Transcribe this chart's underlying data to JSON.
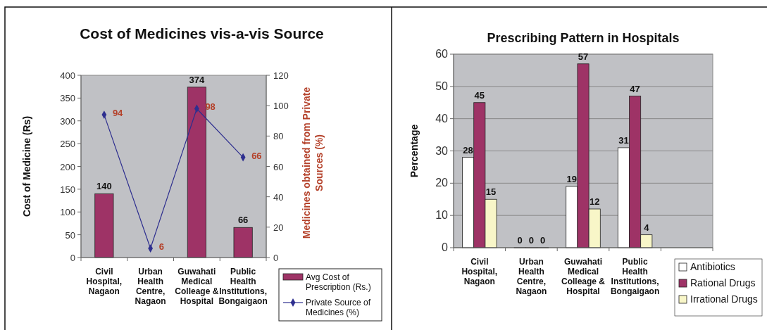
{
  "chart_data": [
    {
      "type": "bar",
      "title": "Cost of Medicines vis-a-vis Source",
      "ylabel": "Cost of Medicine (Rs)",
      "y2label": "Medicines obtained from Private Sources (%)",
      "categories": [
        "Civil Hospital, Nagaon",
        "Urban Health Centre, Nagaon",
        "Guwahati Medical Colleage & Hospital",
        "Public Health Institutions, Bongaigaon"
      ],
      "series": [
        {
          "name": "Avg Cost of Prescription (Rs.)",
          "type": "bar",
          "color": "#9e3366",
          "values": [
            140,
            null,
            374,
            66
          ]
        },
        {
          "name": "Private Source of Medicines (%)",
          "type": "line",
          "axis": "y2",
          "color": "#2e2f8f",
          "values": [
            94,
            6,
            98,
            66
          ]
        }
      ],
      "ylim": [
        0,
        400
      ],
      "yticks": [
        0,
        50,
        100,
        150,
        200,
        250,
        300,
        350,
        400
      ],
      "y2lim": [
        0,
        120
      ],
      "y2ticks": [
        0,
        20,
        40,
        60,
        80,
        100,
        120
      ],
      "marker": "diamond",
      "data_labels": true,
      "legend": "bottom right"
    },
    {
      "type": "bar",
      "title": "Prescribing Pattern in Hospitals",
      "ylabel": "Percentage",
      "categories": [
        "Civil Hospital, Nagaon",
        "Urban Health Centre, Nagaon",
        "Guwahati Medical Colleage & Hospital",
        "Public Health Institutions, Bongaigaon",
        null
      ],
      "series": [
        {
          "name": "Antibiotics",
          "color": "#ffffff",
          "values": [
            28,
            0,
            19,
            31,
            null
          ]
        },
        {
          "name": "Rational Drugs",
          "color": "#9e3366",
          "values": [
            45,
            0,
            57,
            47,
            null
          ]
        },
        {
          "name": "Irrational Drugs",
          "color": "#f8f6c8",
          "values": [
            15,
            0,
            12,
            4,
            null
          ]
        }
      ],
      "ylim": [
        0,
        60
      ],
      "yticks": [
        0,
        10,
        20,
        30,
        40,
        50,
        60
      ],
      "grid": "y",
      "data_labels": true,
      "legend": "bottom right"
    }
  ]
}
